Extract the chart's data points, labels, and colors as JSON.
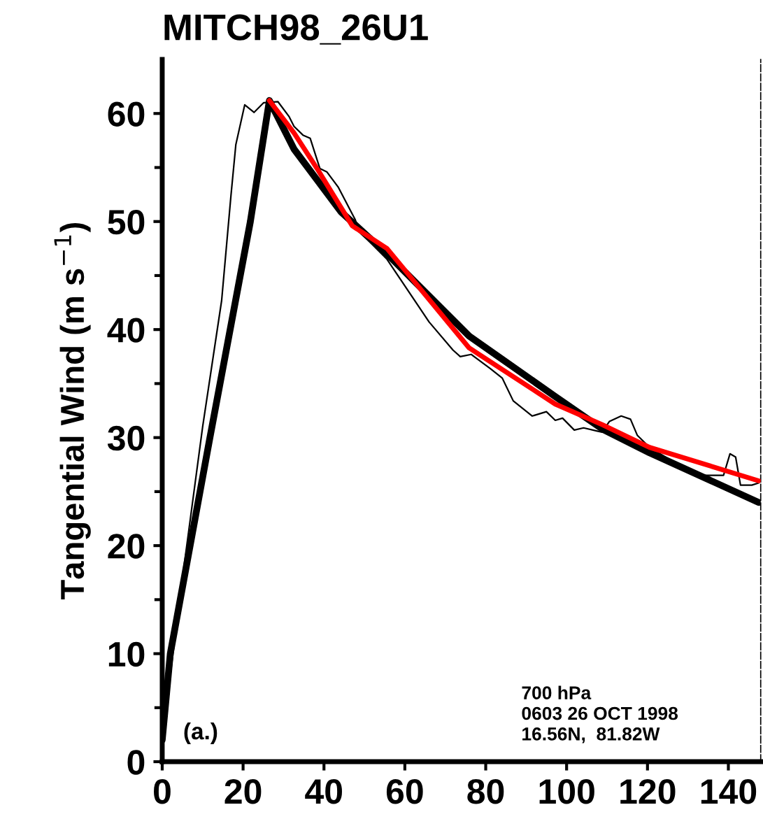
{
  "chart_data": {
    "type": "line",
    "title": "MITCH98_26U1",
    "ylabel": "Tangential Wind (m s$^{−1}$)",
    "annotations": [
      "(a.)",
      "700 hPa\n0603 26 OCT 1998\n16.56N,  81.82W"
    ],
    "xlim": [
      0,
      148
    ],
    "ylim": [
      0,
      65
    ],
    "xticks": [
      0,
      20,
      40,
      60,
      80,
      100,
      120,
      140
    ],
    "yticks": [
      0,
      {
        "value": 5,
        "label": null
      },
      10,
      {
        "value": 15,
        "label": null
      },
      20,
      {
        "value": 25,
        "label": null
      },
      30,
      {
        "value": 35,
        "label": null
      },
      40,
      {
        "value": 45,
        "label": null
      },
      50,
      {
        "value": 55,
        "label": null
      },
      60
    ],
    "grid": false,
    "legend": false,
    "marker": "none",
    "series": [
      {
        "color": "#000000",
        "line_style": "solid",
        "x": [
          0,
          5,
          10,
          14.7,
          17,
          18.2,
          20.4,
          22.7,
          25.1,
          28.6,
          31.4,
          32.6,
          34.8,
          36.6,
          39,
          40.7,
          43.5,
          47.7,
          48.7,
          55.6,
          63.3,
          66,
          71.9,
          73.7,
          76.4,
          81.1,
          84.1,
          86.8,
          91.5,
          95,
          97.2,
          99,
          101.9,
          104.2,
          107.6,
          108.8,
          110.6,
          113.5,
          115.8,
          117.5,
          120.5,
          126.2,
          129.6,
          131.9,
          135.4,
          138.8,
          140.4,
          141.8,
          143,
          145.8,
          147.5
        ],
        "values": [
          2,
          17,
          31,
          42.7,
          52.4,
          57.1,
          60.8,
          60.1,
          61.0,
          61.1,
          59.7,
          58.8,
          58.0,
          57.7,
          54.9,
          54.6,
          53.2,
          50.2,
          49.1,
          46.5,
          42.2,
          40.7,
          38.1,
          37.5,
          37.7,
          36.4,
          35.5,
          33.4,
          32.0,
          32.4,
          31.6,
          31.8,
          30.7,
          30.9,
          30.6,
          30.5,
          31.5,
          32.0,
          31.7,
          30.2,
          29.1,
          27.8,
          27.1,
          26.5,
          26.5,
          26.5,
          28.5,
          28.2,
          25.6,
          25.6,
          25.8
        ]
      },
      {
        "color": "#000000",
        "line_style": "solid",
        "x": [
          0,
          2,
          11.8,
          21.8,
          26.5,
          32.6,
          44.2,
          55.6,
          75.9,
          97.2,
          108.8,
          120.5,
          147.5
        ],
        "values": [
          2,
          10,
          30,
          50,
          61.2,
          56.7,
          50.9,
          47.0,
          39.4,
          33.8,
          30.8,
          28.6,
          24.0
        ]
      },
      {
        "color": "#ff0000",
        "line_style": "solid",
        "x": [
          26.5,
          32.6,
          38.3,
          47,
          55.6,
          75.9,
          97.2,
          108.8,
          120.5,
          147.5
        ],
        "values": [
          61.2,
          58.2,
          54.9,
          49.6,
          47.5,
          38.3,
          33.1,
          31.2,
          29.1,
          26.0
        ]
      }
    ]
  }
}
